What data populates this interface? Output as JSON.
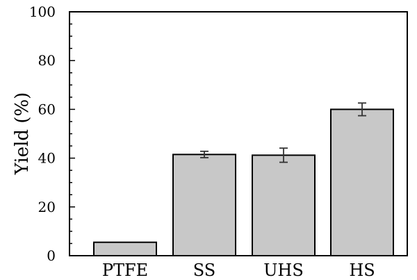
{
  "chart_data": {
    "type": "bar",
    "title": "",
    "xlabel": "",
    "ylabel": "Yield (%)",
    "categories": [
      "PTFE",
      "SS",
      "UHS",
      "HS"
    ],
    "values": [
      5.5,
      41.5,
      41.2,
      60.0
    ],
    "errors": [
      0.2,
      1.3,
      2.9,
      2.6
    ],
    "ylim": [
      0,
      100
    ],
    "yticks": [
      "0",
      "20",
      "40",
      "60",
      "80",
      "100"
    ],
    "grid": false,
    "bar_color": "#c8c8c8",
    "edge_color": "#000000"
  }
}
